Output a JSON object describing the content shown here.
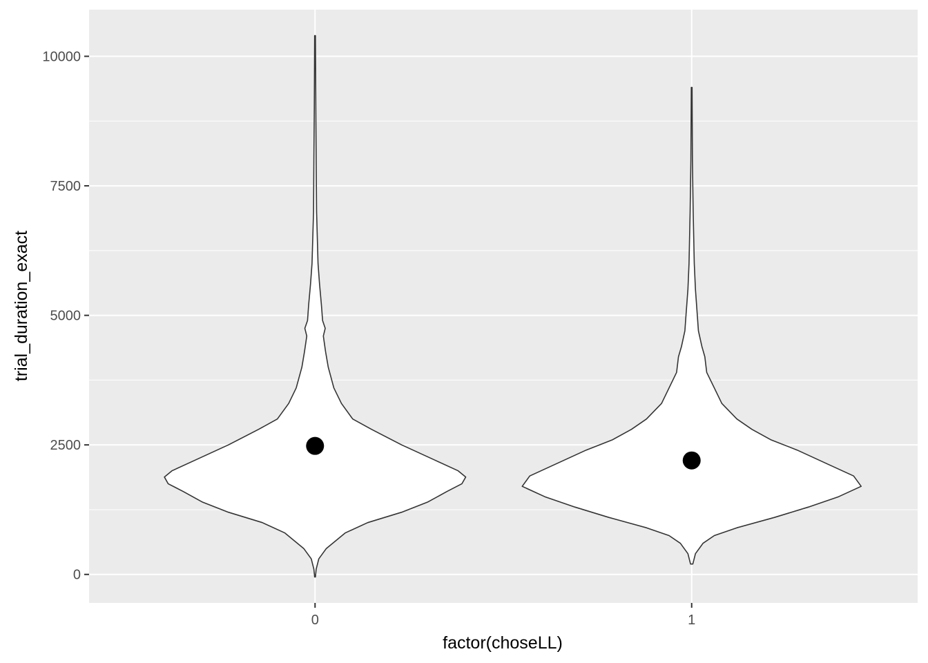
{
  "chart_data": {
    "type": "violin",
    "xlabel": "factor(choseLL)",
    "ylabel": "trial_duration_exact",
    "categories": [
      "0",
      "1"
    ],
    "ylim": [
      -550,
      10900
    ],
    "yticks": [
      0,
      2500,
      5000,
      7500,
      10000
    ],
    "grid": true,
    "colors": {
      "panel_background": "#ebebeb",
      "grid_major": "#ffffff",
      "violin_fill": "#ffffff",
      "violin_outline": "#333333",
      "mean_point": "#000000"
    },
    "violins": [
      {
        "category": "0",
        "mean": 2480,
        "max_half_width": 0.4,
        "profile": [
          [
            -50,
            0.001
          ],
          [
            100,
            0.003
          ],
          [
            300,
            0.01
          ],
          [
            500,
            0.03
          ],
          [
            800,
            0.08
          ],
          [
            1000,
            0.14
          ],
          [
            1200,
            0.23
          ],
          [
            1400,
            0.3
          ],
          [
            1600,
            0.35
          ],
          [
            1750,
            0.39
          ],
          [
            1880,
            0.4
          ],
          [
            2000,
            0.38
          ],
          [
            2200,
            0.32
          ],
          [
            2500,
            0.23
          ],
          [
            2800,
            0.15
          ],
          [
            3000,
            0.1
          ],
          [
            3300,
            0.07
          ],
          [
            3600,
            0.05
          ],
          [
            4000,
            0.035
          ],
          [
            4300,
            0.028
          ],
          [
            4600,
            0.022
          ],
          [
            4750,
            0.027
          ],
          [
            4900,
            0.02
          ],
          [
            5200,
            0.017
          ],
          [
            5600,
            0.012
          ],
          [
            6000,
            0.008
          ],
          [
            7000,
            0.004
          ],
          [
            8000,
            0.003
          ],
          [
            9000,
            0.002
          ],
          [
            10400,
            0.001
          ]
        ]
      },
      {
        "category": "1",
        "mean": 2200,
        "max_half_width": 0.45,
        "profile": [
          [
            200,
            0.003
          ],
          [
            400,
            0.01
          ],
          [
            600,
            0.03
          ],
          [
            750,
            0.06
          ],
          [
            900,
            0.12
          ],
          [
            1100,
            0.22
          ],
          [
            1300,
            0.31
          ],
          [
            1500,
            0.39
          ],
          [
            1700,
            0.45
          ],
          [
            1900,
            0.43
          ],
          [
            2100,
            0.37
          ],
          [
            2400,
            0.28
          ],
          [
            2600,
            0.21
          ],
          [
            2800,
            0.16
          ],
          [
            3000,
            0.12
          ],
          [
            3300,
            0.08
          ],
          [
            3600,
            0.06
          ],
          [
            3900,
            0.04
          ],
          [
            4200,
            0.035
          ],
          [
            4400,
            0.027
          ],
          [
            4700,
            0.018
          ],
          [
            5000,
            0.015
          ],
          [
            5500,
            0.01
          ],
          [
            6000,
            0.007
          ],
          [
            7000,
            0.004
          ],
          [
            8000,
            0.002
          ],
          [
            9400,
            0.001
          ]
        ]
      }
    ]
  }
}
